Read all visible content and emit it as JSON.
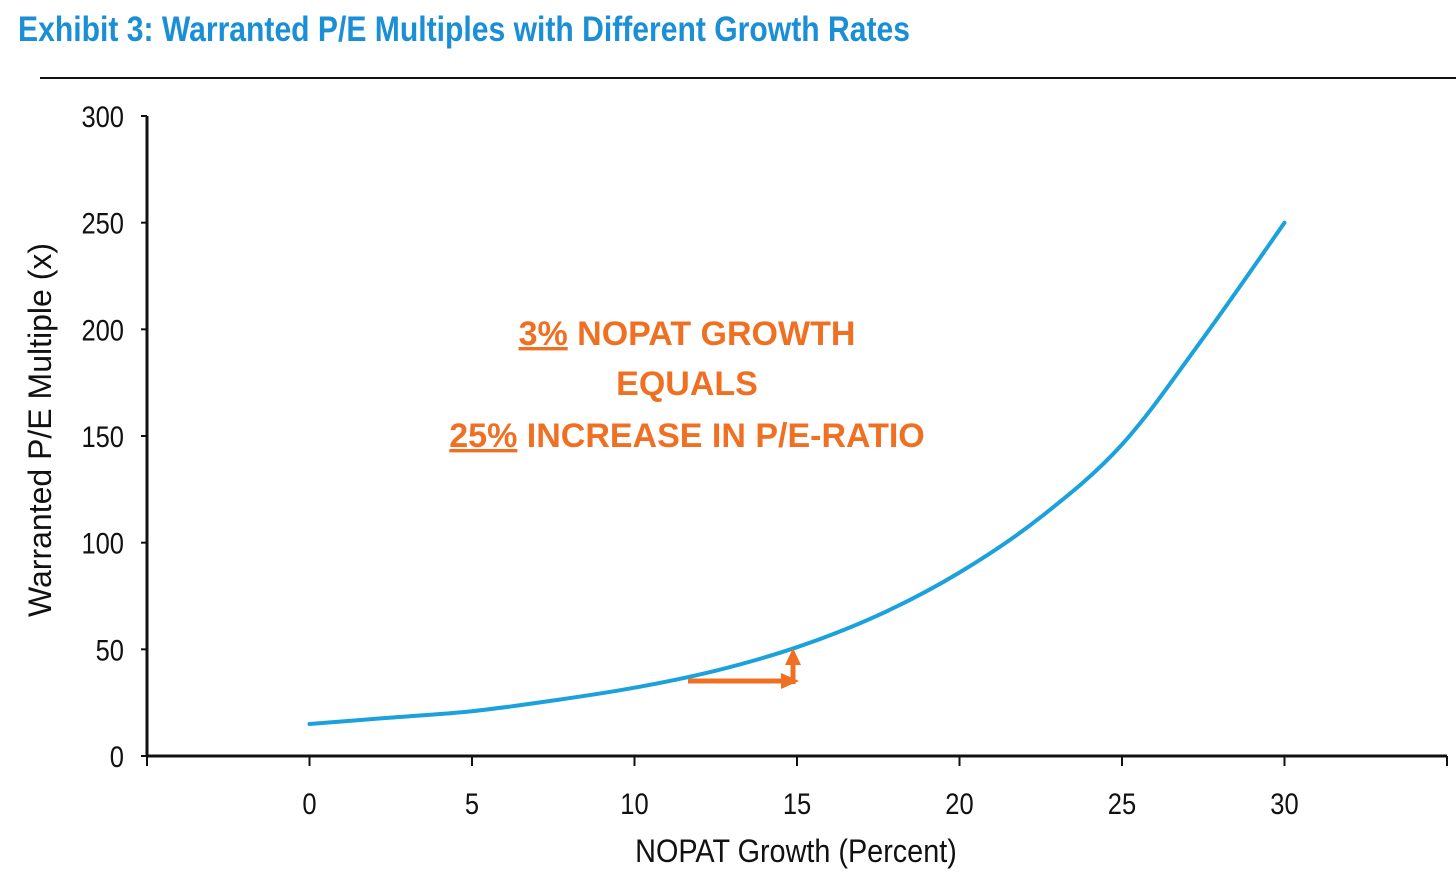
{
  "header": {
    "title": "Exhibit 3: Warranted P/E Multiples with Different Growth Rates"
  },
  "annotation": {
    "line1_pct": "3%",
    "line1_rest": " NOPAT GROWTH",
    "line2": "EQUALS",
    "line3_pct": "25%",
    "line3_rest": " INCREASE IN P/E-RATIO",
    "color": "#f07023"
  },
  "chart_data": {
    "type": "line",
    "title": "Exhibit 3: Warranted P/E Multiples with Different Growth Rates",
    "xlabel": "NOPAT Growth (Percent)",
    "ylabel": "Warranted P/E Multiple (x)",
    "xlim": [
      -5,
      35
    ],
    "ylim": [
      0,
      300
    ],
    "x_ticks": [
      0,
      5,
      10,
      15,
      20,
      25,
      30
    ],
    "y_ticks": [
      0,
      50,
      100,
      150,
      200,
      250,
      300
    ],
    "grid": false,
    "line_color": "#1ba1dc",
    "series": [
      {
        "x": [
          0,
          2.5,
          5,
          7.5,
          10,
          12.5,
          15,
          17.5,
          20,
          22.5,
          25,
          27.5,
          30
        ],
        "values": [
          15,
          18,
          21,
          26,
          32,
          40,
          51,
          66,
          86,
          112,
          146,
          196,
          250
        ]
      }
    ]
  }
}
